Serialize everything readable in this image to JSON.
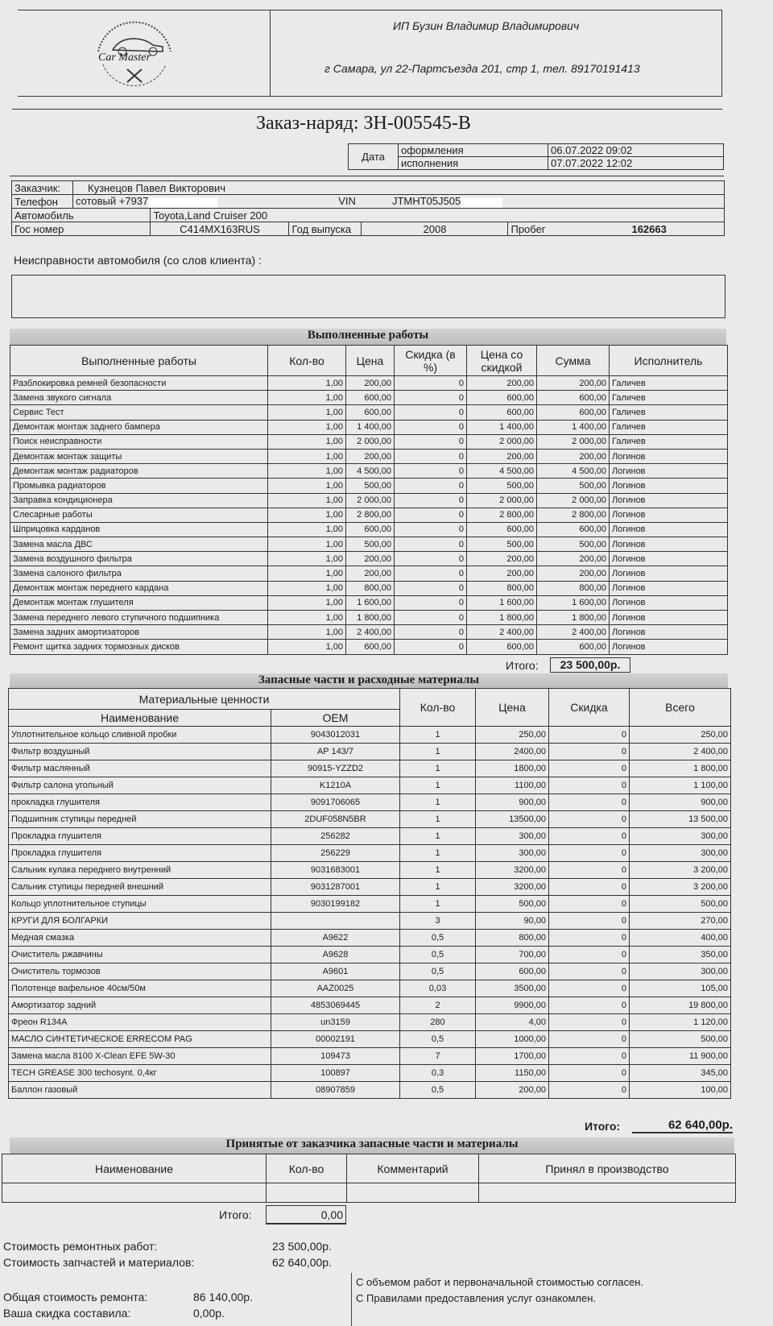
{
  "header": {
    "logo_text": "Car Master",
    "company": "ИП Бузин Владимир Владимирович",
    "address": "г Самара, ул 22-Партсъезда 201, стр 1, тел. 89170191413"
  },
  "order": {
    "title": "Заказ-наряд: ЗН-005545-В",
    "date_label": "Дата",
    "created_label": "оформления",
    "created": "06.07.2022 09:02",
    "done_label": "исполнения",
    "done": "07.07.2022 12:02"
  },
  "client": {
    "customer_label": "Заказчик:",
    "customer": "Кузнецов Павел Викторович",
    "phone_label": "Телефон",
    "phone": "сотовый +7937",
    "vin_label": "VIN",
    "vin": "JTMHT05J505",
    "car_label": "Автомобиль",
    "car": "Toyota,Land Cruiser 200",
    "plate_label": "Гос номер",
    "plate": "C414MX163RUS",
    "year_label": "Год выпуска",
    "year": "2008",
    "mileage_label": "Пробег",
    "mileage": "162663"
  },
  "faults": {
    "label": "Неисправности автомобиля (со слов клиента) :"
  },
  "works": {
    "band": "Выполненные работы",
    "headers": [
      "Выполненные работы",
      "Кол-во",
      "Цена",
      "Скидка (в %)",
      "Цена со скидкой",
      "Сумма",
      "Исполнитель"
    ],
    "rows": [
      [
        "Разблокировка ремней безопасности",
        "1,00",
        "200,00",
        "0",
        "200,00",
        "200,00",
        "Галичев"
      ],
      [
        "Замена звукого сигнала",
        "1,00",
        "600,00",
        "0",
        "600,00",
        "600,00",
        "Галичев"
      ],
      [
        "Сервис Тест",
        "1,00",
        "600,00",
        "0",
        "600,00",
        "600,00",
        "Галичев"
      ],
      [
        "Демонтаж монтаж заднего бампера",
        "1,00",
        "1 400,00",
        "0",
        "1 400,00",
        "1 400,00",
        "Галичев"
      ],
      [
        "Поиск неисправности",
        "1,00",
        "2 000,00",
        "0",
        "2 000,00",
        "2 000,00",
        "Галичев"
      ],
      [
        "Демонтаж монтаж защиты",
        "1,00",
        "200,00",
        "0",
        "200,00",
        "200,00",
        "Логинов"
      ],
      [
        "Демонтаж монтаж радиаторов",
        "1,00",
        "4 500,00",
        "0",
        "4 500,00",
        "4 500,00",
        "Логинов"
      ],
      [
        "Промывка радиаторов",
        "1,00",
        "500,00",
        "0",
        "500,00",
        "500,00",
        "Логинов"
      ],
      [
        "Заправка кондиционера",
        "1,00",
        "2 000,00",
        "0",
        "2 000,00",
        "2 000,00",
        "Логинов"
      ],
      [
        "Слесарные работы",
        "1,00",
        "2 800,00",
        "0",
        "2 800,00",
        "2 800,00",
        "Логинов"
      ],
      [
        "Шприцовка карданов",
        "1,00",
        "600,00",
        "0",
        "600,00",
        "600,00",
        "Логинов"
      ],
      [
        "Замена масла ДВС",
        "1,00",
        "500,00",
        "0",
        "500,00",
        "500,00",
        "Логинов"
      ],
      [
        "Замена воздушного фильтра",
        "1,00",
        "200,00",
        "0",
        "200,00",
        "200,00",
        "Логинов"
      ],
      [
        "Замена салоного фильтра",
        "1,00",
        "200,00",
        "0",
        "200,00",
        "200,00",
        "Логинов"
      ],
      [
        "Демонтаж монтаж переднего кардана",
        "1,00",
        "800,00",
        "0",
        "800,00",
        "800,00",
        "Логинов"
      ],
      [
        "Демонтаж монтаж глушителя",
        "1,00",
        "1 600,00",
        "0",
        "1 600,00",
        "1 600,00",
        "Логинов"
      ],
      [
        "Замена переднего левого ступичного подшипника",
        "1,00",
        "1 800,00",
        "0",
        "1 800,00",
        "1 800,00",
        "Логинов"
      ],
      [
        "Замена задних амортизаторов",
        "1,00",
        "2 400,00",
        "0",
        "2 400,00",
        "2 400,00",
        "Логинов"
      ],
      [
        "Ремонт щитка задних тормозных дисков",
        "1,00",
        "600,00",
        "0",
        "600,00",
        "600,00",
        "Логинов"
      ]
    ],
    "total_label": "Итого:",
    "total": "23 500,00р."
  },
  "parts": {
    "band": "Запасные части и расходные материалы",
    "group_header": "Материальные ценности",
    "headers": [
      "Наименование",
      "OEM",
      "Кол-во",
      "Цена",
      "Скидка",
      "Всего"
    ],
    "rows": [
      [
        "Уплотнительное кольцо сливной пробки",
        "9043012031",
        "1",
        "250,00",
        "0",
        "250,00"
      ],
      [
        "Фильтр воздушный",
        "AP 143/7",
        "1",
        "2400,00",
        "0",
        "2 400,00"
      ],
      [
        "Фильтр маслянный",
        "90915-YZZD2",
        "1",
        "1800,00",
        "0",
        "1 800,00"
      ],
      [
        "Фильтр салона угольный",
        "K1210A",
        "1",
        "1100,00",
        "0",
        "1 100,00"
      ],
      [
        "прокладка глушителя",
        "9091706065",
        "1",
        "900,00",
        "0",
        "900,00"
      ],
      [
        "Подшипник ступицы  передней",
        "2DUF058N5BR",
        "1",
        "13500,00",
        "0",
        "13 500,00"
      ],
      [
        "Прокладка глушителя",
        "256282",
        "1",
        "300,00",
        "0",
        "300,00"
      ],
      [
        "Прокладка глушителя",
        "256229",
        "1",
        "300,00",
        "0",
        "300,00"
      ],
      [
        "Сальник кулака переднего внутренний",
        "9031683001",
        "1",
        "3200,00",
        "0",
        "3 200,00"
      ],
      [
        "Сальник ступицы передней внешний",
        "9031287001",
        "1",
        "3200,00",
        "0",
        "3 200,00"
      ],
      [
        "Кольцо уплотнительное ступицы",
        "9030199182",
        "1",
        "500,00",
        "0",
        "500,00"
      ],
      [
        "КРУГИ ДЛЯ БОЛГАРКИ",
        "",
        "3",
        "90,00",
        "0",
        "270,00"
      ],
      [
        "Медная смазка",
        "A9622",
        "0,5",
        "800,00",
        "0",
        "400,00"
      ],
      [
        "Очиститель ржавчины",
        "A9628",
        "0,5",
        "700,00",
        "0",
        "350,00"
      ],
      [
        "Очиститель тормозов",
        "A9601",
        "0,5",
        "600,00",
        "0",
        "300,00"
      ],
      [
        "Полотенце вафельное 40см/50м",
        "AAZ0025",
        "0,03",
        "3500,00",
        "0",
        "105,00"
      ],
      [
        "Амортизатор задний",
        "4853069445",
        "2",
        "9900,00",
        "0",
        "19 800,00"
      ],
      [
        "Фреон R134A",
        "un3159",
        "280",
        "4,00",
        "0",
        "1 120,00"
      ],
      [
        "МАСЛО СИНТЕТИЧЕСКОЕ ERRECOM PAG",
        "00002191",
        "0,5",
        "1000,00",
        "0",
        "500,00"
      ],
      [
        "Замена масла 8100 X-Clean EFE 5W-30",
        "109473",
        "7",
        "1700,00",
        "0",
        "11 900,00"
      ],
      [
        "TECH GREASE 300 techosynt. 0,4кг",
        "100897",
        "0,3",
        "1150,00",
        "0",
        "345,00"
      ],
      [
        "Баллон газовый",
        "08907859",
        "0,5",
        "200,00",
        "0",
        "100,00"
      ]
    ],
    "total_label": "Итого:",
    "total": "62 640,00р."
  },
  "accepted": {
    "band": "Принятые от заказчика запасные части и материалы",
    "headers": [
      "Наименование",
      "Кол-во",
      "Комментарий",
      "Принял в производство"
    ],
    "total_label": "Итого:",
    "total": "0,00"
  },
  "summary": {
    "works_label": "Стоимость ремонтных работ:",
    "works": "23 500,00р.",
    "parts_label": "Стоимость запчастей и материалов:",
    "parts": "62 640,00р.",
    "total_label": "Общая стоимость ремонта:",
    "total": "86 140,00р.",
    "discount_label": "Ваша скидка составила:",
    "discount": "0,00р.",
    "agree1": "С объемом работ и первоначальной стоимостью согласен.",
    "agree2": "С Правилами предоставления услуг ознакомлен."
  }
}
